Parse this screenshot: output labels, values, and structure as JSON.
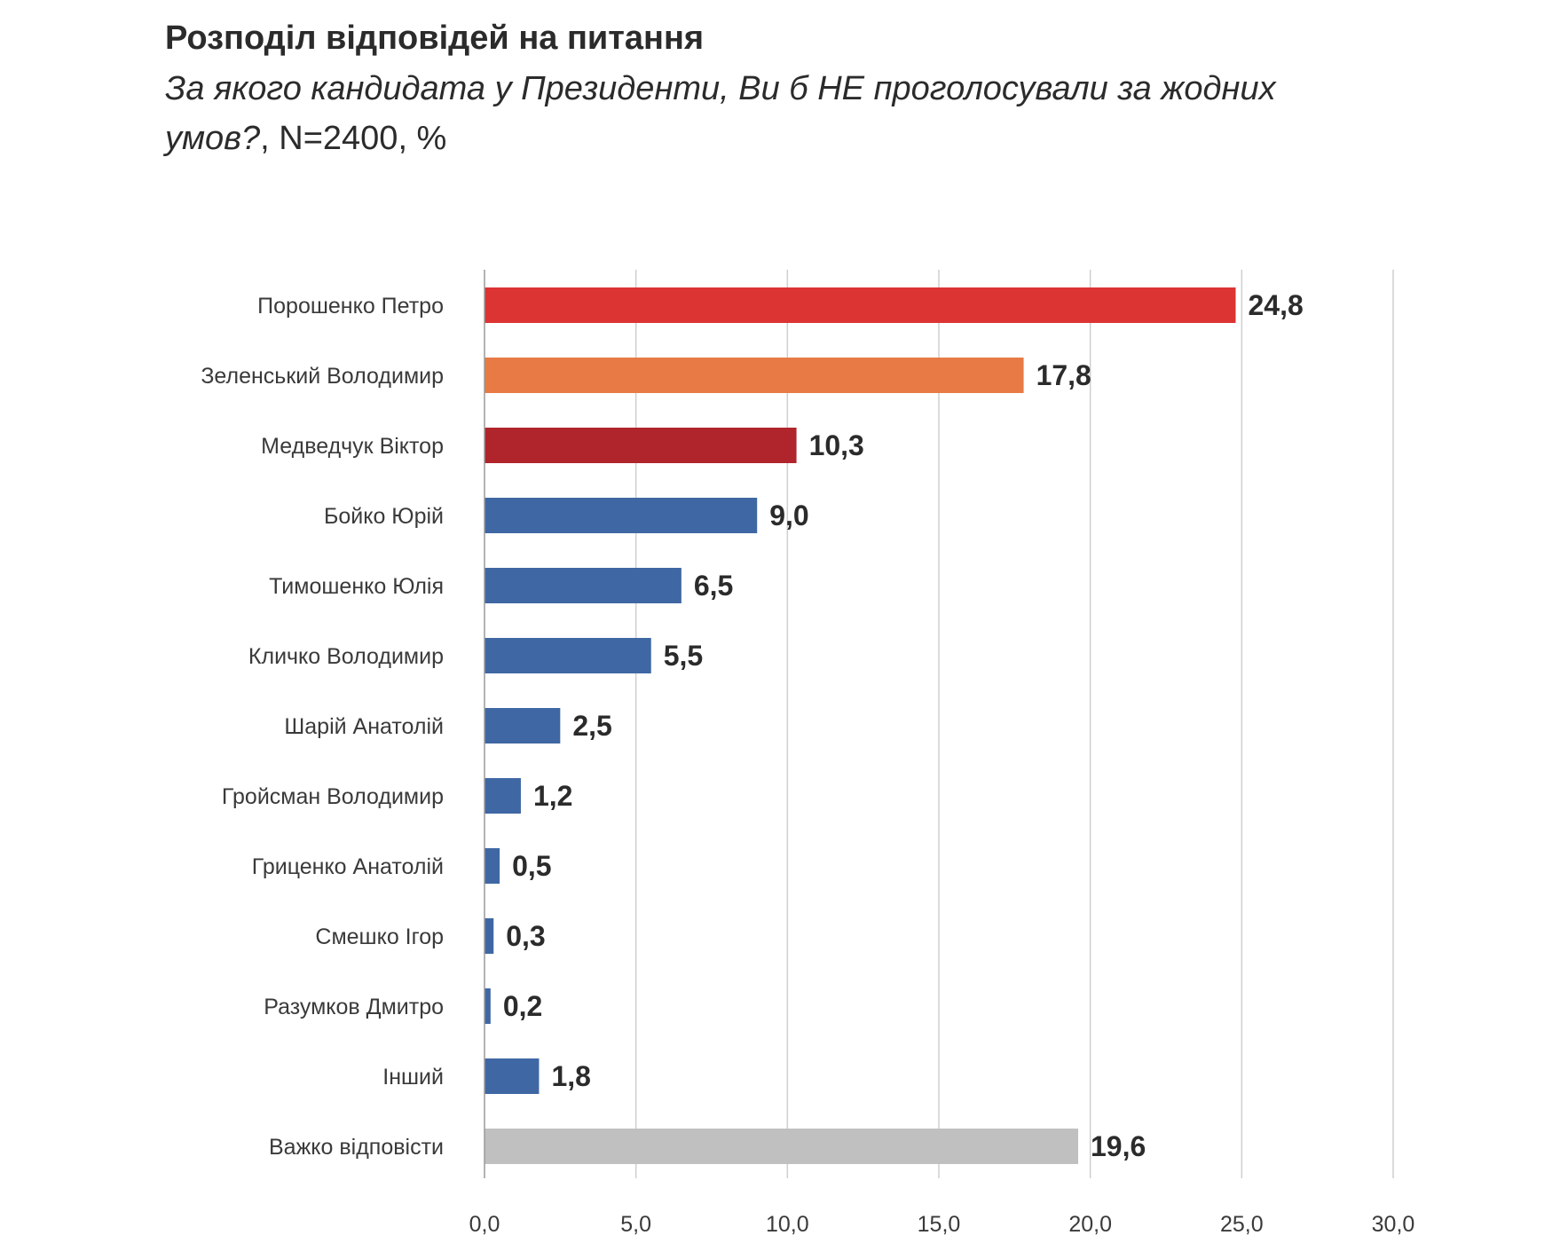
{
  "chart_data": {
    "type": "bar",
    "orientation": "horizontal",
    "title": "Розподіл відповідей на питання",
    "subtitle_question": "За якого кандидата у Президенти, Ви б НЕ проголосували за жодних умов?",
    "subtitle_meta": ", N=2400, %",
    "categories": [
      "Порошенко Петро",
      "Зеленський Володимир",
      "Медведчук Віктор",
      "Бойко Юрій",
      "Тимошенко Юлія",
      "Кличко Володимир",
      "Шарій Анатолій",
      "Гройсман Володимир",
      "Гриценко Анатолій",
      "Смешко Ігор",
      "Разумков Дмитро",
      "Інший",
      "Важко відповісти"
    ],
    "values": [
      24.8,
      17.8,
      10.3,
      9.0,
      6.5,
      5.5,
      2.5,
      1.2,
      0.5,
      0.3,
      0.2,
      1.8,
      19.6
    ],
    "value_labels": [
      "24,8",
      "17,8",
      "10,3",
      "9,0",
      "6,5",
      "5,5",
      "2,5",
      "1,2",
      "0,5",
      "0,3",
      "0,2",
      "1,8",
      "19,6"
    ],
    "colors": [
      "#dc3333",
      "#e77a45",
      "#b0242b",
      "#3f67a3",
      "#3f67a3",
      "#3f67a3",
      "#3f67a3",
      "#3f67a3",
      "#3f67a3",
      "#3f67a3",
      "#3f67a3",
      "#3f67a3",
      "#c0c0c0"
    ],
    "xlim": [
      0,
      30
    ],
    "xticks": [
      0,
      5,
      10,
      15,
      20,
      25,
      30
    ],
    "xtick_labels": [
      "0,0",
      "5,0",
      "10,0",
      "15,0",
      "20,0",
      "25,0",
      "30,0"
    ],
    "grid": true,
    "xlabel": "",
    "ylabel": ""
  }
}
